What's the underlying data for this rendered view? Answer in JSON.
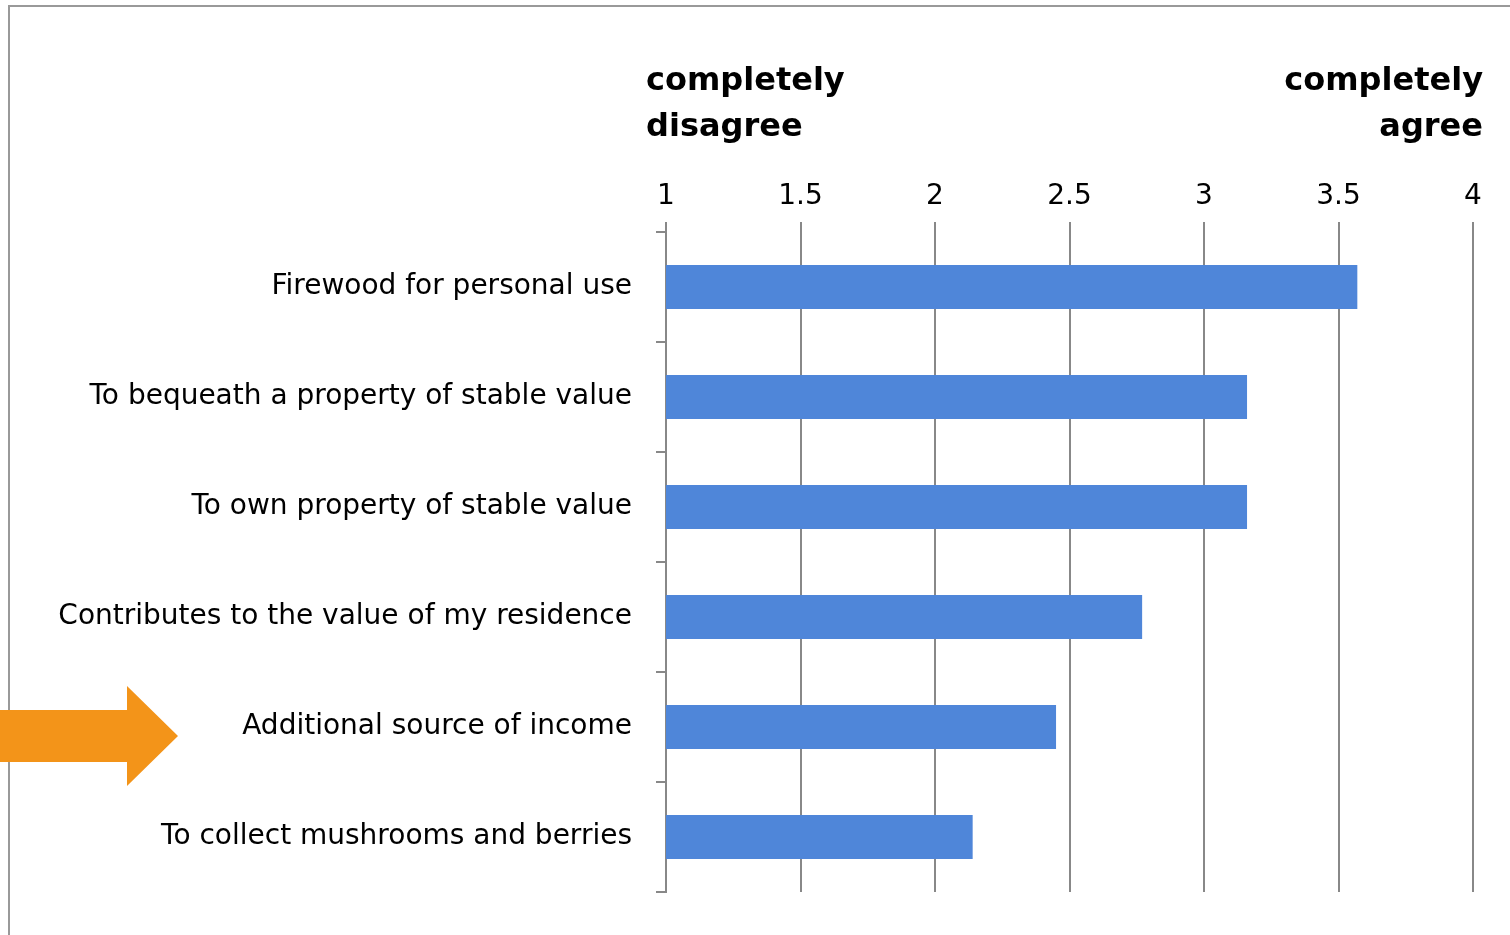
{
  "chart_data": {
    "type": "bar",
    "orientation": "horizontal",
    "categories": [
      "Firewood for personal use",
      "To bequeath a property of stable value",
      "To own property of stable value",
      "Contributes to the value of my residence",
      "Additional source of income",
      "To collect mushrooms and berries"
    ],
    "values": [
      3.57,
      3.16,
      3.16,
      2.77,
      2.45,
      2.14
    ],
    "color": "#4f86d9",
    "xlim": [
      1,
      4
    ],
    "xticks": [
      1,
      1.5,
      2,
      2.5,
      3,
      3.5,
      4
    ],
    "grid": "x",
    "legend": false,
    "annotations": [
      "completely disagree",
      "completely agree"
    ]
  }
}
